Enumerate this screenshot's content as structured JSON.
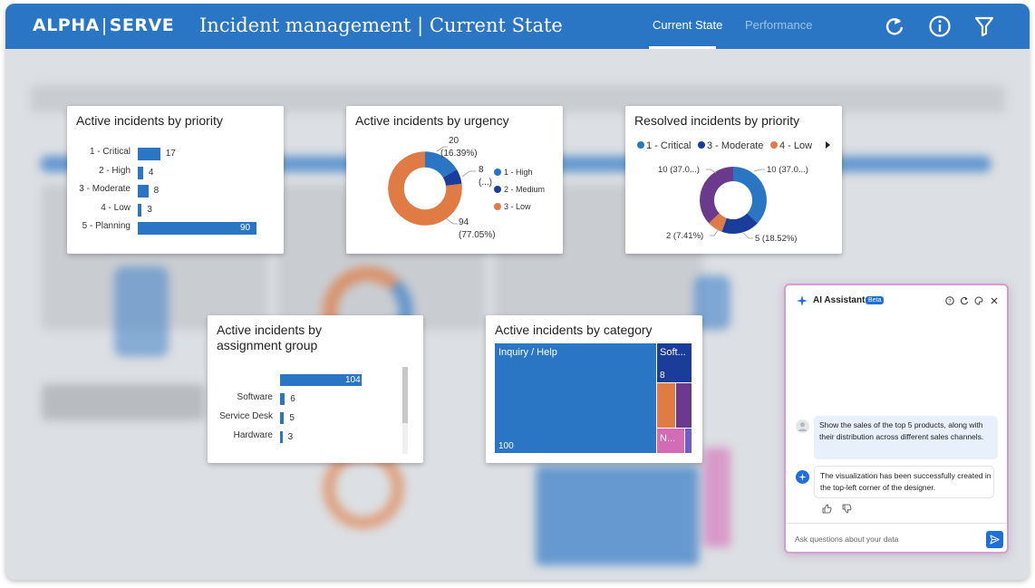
{
  "header": {
    "logo_left": "ALPHA",
    "logo_sep": "|",
    "logo_right": "SERVE",
    "title": "Incident management | Current State",
    "tabs": [
      {
        "label": "Current State",
        "active": true
      },
      {
        "label": "Performance",
        "active": false
      }
    ],
    "icons": [
      "refresh-icon",
      "info-icon",
      "filter-icon"
    ]
  },
  "colors": {
    "brand_blue": "#2a76c4",
    "dark_blue": "#1a3d9c",
    "orange": "#e07b45",
    "purple": "#6b3a8c",
    "pink": "#d56ab7",
    "ai_border": "#d39ed2",
    "ai_accent": "#1e6fd9"
  },
  "cards": {
    "priority": {
      "title": "Active incidents by priority"
    },
    "urgency": {
      "title": "Active incidents by urgency"
    },
    "resolved": {
      "title": "Resolved incidents by priority"
    },
    "assignment": {
      "title_line1": "Active incidents by",
      "title_line2": "assignment group"
    },
    "category": {
      "title": "Active incidents by category"
    }
  },
  "chart_data": [
    {
      "type": "bar",
      "orientation": "horizontal",
      "title": "Active incidents by priority",
      "categories": [
        "1 - Critical",
        "2 - High",
        "3 - Moderate",
        "4 - Low",
        "5 - Planning"
      ],
      "values": [
        17,
        4,
        8,
        3,
        90
      ],
      "value_labels": [
        "17",
        "4",
        "8",
        "3",
        "90"
      ]
    },
    {
      "type": "pie",
      "style": "donut",
      "title": "Active incidents by urgency",
      "categories": [
        "1 - High",
        "2 - Medium",
        "3 - Low"
      ],
      "values": [
        20,
        8,
        94
      ],
      "data_labels": [
        "20",
        "(16.39%)",
        "8",
        "(...)",
        "94",
        "(77.05%)"
      ],
      "colors": [
        "#2a76c4",
        "#1a3d9c",
        "#e07b45"
      ],
      "legend_position": "right"
    },
    {
      "type": "pie",
      "style": "donut",
      "title": "Resolved incidents by priority",
      "legend": [
        "1 - Critical",
        "3 - Moderate",
        "4 - Low"
      ],
      "legend_position": "top",
      "slices": [
        {
          "value": 10,
          "color": "#2a76c4",
          "label": "10 (37.0...)"
        },
        {
          "value": 5,
          "color": "#1a3d9c",
          "label": "5 (18.52%)"
        },
        {
          "value": 2,
          "color": "#e07b45",
          "label": "2 (7.41%)"
        },
        {
          "value": 10,
          "color": "#6b3a8c",
          "label": "10 (37.0...)"
        }
      ]
    },
    {
      "type": "bar",
      "orientation": "horizontal",
      "title": "Active incidents by assignment group",
      "categories": [
        "",
        "Software",
        "Service Desk",
        "Hardware"
      ],
      "values": [
        104,
        6,
        5,
        3
      ],
      "value_labels": [
        "104",
        "6",
        "5",
        "3"
      ]
    },
    {
      "type": "treemap",
      "title": "Active incidents by category",
      "items": [
        {
          "label": "Inquiry / Help",
          "value": 100,
          "value_label": "100",
          "color": "#2a76c4"
        },
        {
          "label": "Soft...",
          "value": 8,
          "value_label": "8",
          "color": "#1a3d9c"
        },
        {
          "label": "",
          "color": "#e07b45"
        },
        {
          "label": "",
          "color": "#6b3a8c"
        },
        {
          "label": "N...",
          "color": "#d56ab7"
        },
        {
          "label": "",
          "color": "#6b5fc8"
        }
      ]
    }
  ],
  "ai_panel": {
    "title": "AI Assistant",
    "badge": "Beta",
    "header_icons": [
      "help-icon",
      "refresh-icon",
      "palette-icon",
      "close-icon"
    ],
    "user_message": "Show the sales of the top 5 products, along with their distribution across different sales channels.",
    "assistant_message": "The visualization has been successfully created in the top-left corner of the designer.",
    "feedback_icons": [
      "thumbs-up-icon",
      "thumbs-down-icon"
    ],
    "input_placeholder": "Ask questions about your data"
  }
}
